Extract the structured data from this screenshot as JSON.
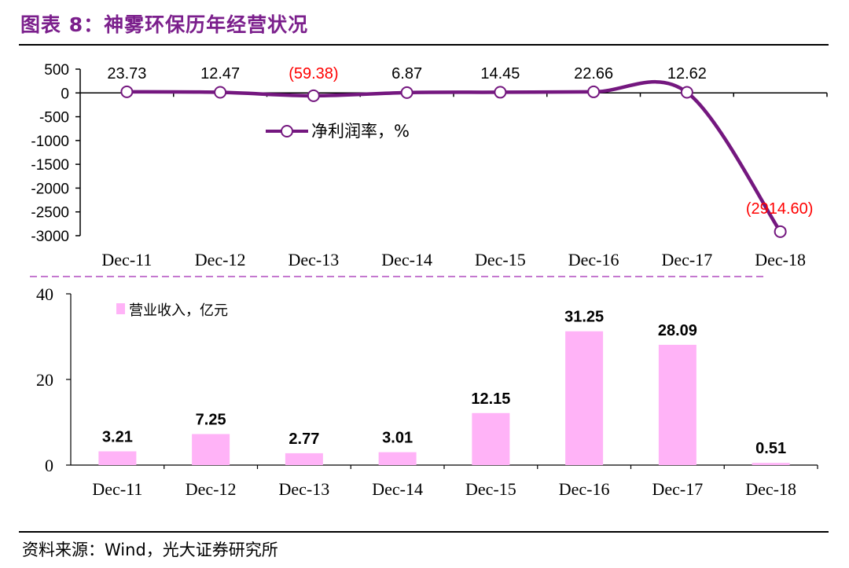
{
  "title": "图表 8：神雾环保历年经营状况",
  "source": "资料来源：Wind，光大证券研究所",
  "colors": {
    "line": "#74177F",
    "bar": "#FFB3F7",
    "negative_label": "#FF0000",
    "title": "#7B1F8C",
    "divider": "#B14BBF"
  },
  "chart_data": [
    {
      "type": "line",
      "categories": [
        "Dec-11",
        "Dec-12",
        "Dec-13",
        "Dec-14",
        "Dec-15",
        "Dec-16",
        "Dec-17",
        "Dec-18"
      ],
      "series": [
        {
          "name": "净利润率，%",
          "values": [
            23.73,
            12.47,
            -59.38,
            6.87,
            14.45,
            22.66,
            12.62,
            -2914.6
          ]
        }
      ],
      "data_labels": [
        "23.73",
        "12.47",
        "(59.38)",
        "6.87",
        "14.45",
        "22.66",
        "12.62",
        "(2914.60)"
      ],
      "ylim": [
        -3000,
        500
      ],
      "yticks": [
        "500",
        "0",
        "-500",
        "-1000",
        "-1500",
        "-2000",
        "-2500",
        "-3000"
      ],
      "legend_position": "upper-left inside plot"
    },
    {
      "type": "bar",
      "categories": [
        "Dec-11",
        "Dec-12",
        "Dec-13",
        "Dec-14",
        "Dec-15",
        "Dec-16",
        "Dec-17",
        "Dec-18"
      ],
      "series": [
        {
          "name": "营业收入，亿元",
          "values": [
            3.21,
            7.25,
            2.77,
            3.01,
            12.15,
            31.25,
            28.09,
            0.51
          ]
        }
      ],
      "data_labels": [
        "3.21",
        "7.25",
        "2.77",
        "3.01",
        "12.15",
        "31.25",
        "28.09",
        "0.51"
      ],
      "ylim": [
        0,
        40
      ],
      "yticks": [
        "40",
        "20",
        "0"
      ],
      "legend_position": "upper-left inside plot"
    }
  ]
}
